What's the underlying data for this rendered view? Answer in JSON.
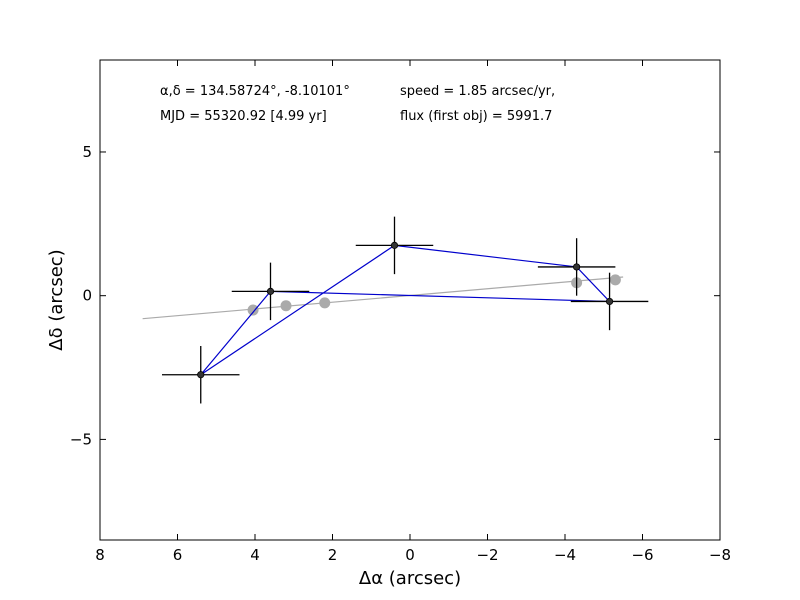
{
  "chart_data": {
    "type": "scatter",
    "xlabel": "Δα (arcsec)",
    "ylabel": "Δδ (arcsec)",
    "xlim": [
      8,
      -8
    ],
    "ylim": [
      -8.5,
      8.2
    ],
    "x_ticks": [
      8,
      6,
      4,
      2,
      0,
      -2,
      -4,
      -6,
      -8
    ],
    "x_tick_labels": [
      "8",
      "6",
      "4",
      "2",
      "0",
      "−2",
      "−4",
      "−6",
      "−8"
    ],
    "y_ticks": [
      5,
      0,
      -5
    ],
    "y_tick_labels": [
      "5",
      "0",
      "−5"
    ],
    "grid": false,
    "annotations": {
      "coords": "α,δ = 134.58724°, -8.10101°",
      "mjd": "MJD = 55320.92 [4.99 yr]",
      "speed": "speed = 1.85 arcsec/yr,",
      "flux": "flux (first obj) = 5991.7"
    },
    "series": [
      {
        "kind": "measured_positions",
        "color": "#0000cc",
        "marker_color": "#333333",
        "points": [
          {
            "x": 5.4,
            "y": -2.75,
            "xerr": 1.0,
            "yerr": 1.0
          },
          {
            "x": 3.6,
            "y": 0.15,
            "xerr": 1.0,
            "yerr": 1.0
          },
          {
            "x": 0.4,
            "y": 1.75,
            "xerr": 1.0,
            "yerr": 1.0
          },
          {
            "x": -4.3,
            "y": 1.0,
            "xerr": 1.0,
            "yerr": 1.0
          },
          {
            "x": -5.15,
            "y": -0.2,
            "xerr": 1.0,
            "yerr": 1.0
          }
        ],
        "path_order": [
          0,
          2,
          3,
          4,
          1,
          0
        ]
      },
      {
        "kind": "predicted_positions",
        "color": "#aaaaaa",
        "points": [
          {
            "x": 4.05,
            "y": -0.5
          },
          {
            "x": 3.2,
            "y": -0.35
          },
          {
            "x": 2.2,
            "y": -0.25
          },
          {
            "x": -4.3,
            "y": 0.45
          },
          {
            "x": -5.3,
            "y": 0.55
          }
        ],
        "trend_line": {
          "x": [
            6.9,
            -5.5
          ],
          "y": [
            -0.8,
            0.65
          ]
        }
      }
    ]
  }
}
